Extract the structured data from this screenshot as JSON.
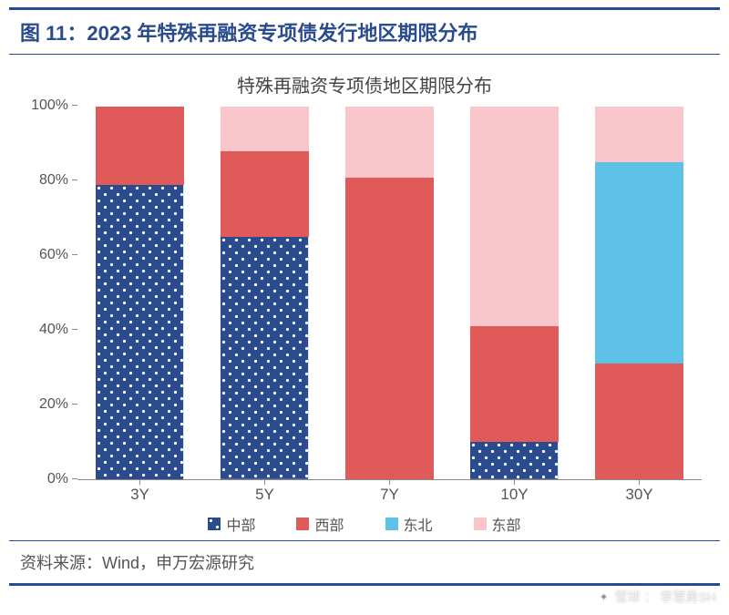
{
  "title": "图 11：2023 年特殊再融资专项债发行地区期限分布",
  "subtitle": "特殊再融资专项债地区期限分布",
  "source_label": "资料来源：Wind，申万宏源研究",
  "watermark": {
    "brand": "雪球",
    "author": "李慧勇SH"
  },
  "chart": {
    "type": "stacked-bar-100",
    "y_axis": {
      "min": 0,
      "max": 100,
      "step": 20,
      "tick_suffix": "%",
      "tick_fontsize": 16,
      "label_color": "#555555"
    },
    "x_axis": {
      "tick_fontsize": 17,
      "label_color": "#555555"
    },
    "categories": [
      "3Y",
      "5Y",
      "7Y",
      "10Y",
      "30Y"
    ],
    "series": [
      {
        "key": "central",
        "label": "中部",
        "color": "#2a4b8d",
        "pattern": "dots"
      },
      {
        "key": "west",
        "label": "西部",
        "color": "#e15a5a",
        "pattern": "none"
      },
      {
        "key": "northeast",
        "label": "东北",
        "color": "#5ec1e8",
        "pattern": "none"
      },
      {
        "key": "east",
        "label": "东部",
        "color": "#f8c6cb",
        "pattern": "none"
      }
    ],
    "values": {
      "central": [
        79,
        65,
        0,
        10,
        0
      ],
      "west": [
        21,
        23,
        81,
        31,
        31
      ],
      "northeast": [
        0,
        0,
        0,
        0,
        54
      ],
      "east": [
        0,
        12,
        19,
        59,
        15
      ]
    },
    "bar_width_ratio": 0.78,
    "background_color": "#ffffff"
  },
  "colors": {
    "title": "#2a4b8d",
    "rule": "#2a4b8d",
    "axis": "#888888",
    "text": "#555555",
    "dot_fill": "#ffffff"
  }
}
